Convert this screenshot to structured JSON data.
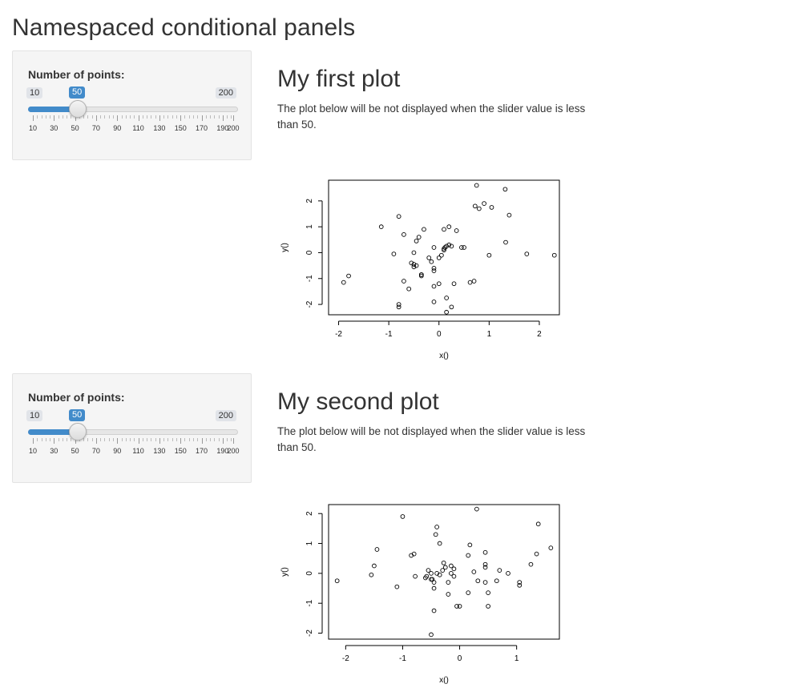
{
  "page": {
    "title": "Namespaced conditional panels"
  },
  "panels": [
    {
      "slider": {
        "label": "Number of points:",
        "min": 10,
        "max": 200,
        "value": 50,
        "min_label": "10",
        "max_label": "200",
        "value_label": "50",
        "tick_labels": [
          "10",
          "30",
          "50",
          "70",
          "90",
          "110",
          "130",
          "150",
          "170",
          "190",
          "200"
        ]
      },
      "plot": {
        "heading": "My first plot",
        "description": "The plot below will be not displayed when the slider value is less than 50."
      }
    },
    {
      "slider": {
        "label": "Number of points:",
        "min": 10,
        "max": 200,
        "value": 50,
        "min_label": "10",
        "max_label": "200",
        "value_label": "50",
        "tick_labels": [
          "10",
          "30",
          "50",
          "70",
          "90",
          "110",
          "130",
          "150",
          "170",
          "190",
          "200"
        ]
      },
      "plot": {
        "heading": "My second plot",
        "description": "The plot below will be not displayed when the slider value is less than 50."
      }
    }
  ],
  "colors": {
    "accent": "#428bca",
    "well_bg": "#f5f5f5",
    "text": "#333333"
  },
  "chart_data": [
    {
      "type": "scatter",
      "title": "",
      "xlabel": "x()",
      "ylabel": "y()",
      "xlim": [
        -2.2,
        2.4
      ],
      "ylim": [
        -2.4,
        2.8
      ],
      "xticks": [
        -2,
        -1,
        0,
        1,
        2
      ],
      "yticks": [
        -2,
        -1,
        0,
        1,
        2
      ],
      "grid": false,
      "x": [
        -1.9,
        -1.8,
        -1.15,
        -0.8,
        -0.9,
        -0.7,
        -0.45,
        -0.4,
        -0.3,
        -0.1,
        0.1,
        0.2,
        0.35,
        0.5,
        0.75,
        0.72,
        0.8,
        0.9,
        1.05,
        1.32,
        1.4,
        1.33,
        1.75,
        2.3,
        -0.8,
        -0.5,
        -0.45,
        -0.5,
        -0.35,
        -0.2,
        -0.15,
        -0.1,
        -0.1,
        0.0,
        0.05,
        0.1,
        0.1,
        0.12,
        0.15,
        0.2,
        0.25,
        -0.55,
        -0.5,
        -0.35,
        -0.35,
        -0.7,
        -0.6,
        -0.1,
        0.3,
        0.62,
        0.7,
        -0.1,
        0.0,
        0.15,
        0.25,
        0.15,
        -0.8,
        1.0,
        0.45
      ],
      "y": [
        -1.15,
        -0.9,
        1.0,
        1.4,
        -0.05,
        0.7,
        0.45,
        0.6,
        0.9,
        0.2,
        0.9,
        1.0,
        0.85,
        0.2,
        2.6,
        1.8,
        1.7,
        1.9,
        1.75,
        2.45,
        1.45,
        0.4,
        -0.05,
        -0.1,
        -2.1,
        0.0,
        -0.5,
        -0.55,
        -0.85,
        -0.2,
        -0.35,
        -0.6,
        -0.7,
        -0.2,
        -0.1,
        0.1,
        0.15,
        0.2,
        0.25,
        0.3,
        0.25,
        -0.4,
        -0.45,
        -0.85,
        -0.9,
        -1.1,
        -1.4,
        -1.3,
        -1.2,
        -1.15,
        -1.1,
        -1.9,
        -1.2,
        -1.75,
        -2.1,
        -2.3,
        -2.0,
        -0.1,
        0.2
      ]
    },
    {
      "type": "scatter",
      "title": "",
      "xlabel": "x()",
      "ylabel": "y()",
      "xlim": [
        -2.3,
        1.75
      ],
      "ylim": [
        -2.2,
        2.3
      ],
      "xticks": [
        -2,
        -1,
        0,
        1
      ],
      "yticks": [
        -2,
        -1,
        0,
        1,
        2
      ],
      "grid": false,
      "x": [
        -2.15,
        -1.55,
        -1.5,
        -1.45,
        -1.1,
        -1.0,
        -0.85,
        -0.8,
        -0.78,
        -0.6,
        -0.58,
        -0.55,
        -0.5,
        -0.48,
        -0.45,
        -0.45,
        -0.42,
        -0.4,
        -0.35,
        -0.3,
        -0.28,
        -0.25,
        -0.2,
        -0.15,
        -0.1,
        -0.05,
        0.15,
        0.15,
        0.18,
        0.25,
        0.3,
        0.32,
        0.45,
        0.45,
        0.45,
        0.45,
        0.5,
        0.5,
        0.7,
        0.65,
        0.85,
        1.05,
        1.05,
        1.25,
        1.35,
        1.38,
        1.6,
        -0.5,
        -0.45,
        -0.5,
        -0.35,
        -0.4,
        -0.1,
        0.0,
        -0.2,
        -0.15
      ],
      "y": [
        -0.25,
        -0.05,
        0.25,
        0.8,
        -0.45,
        1.9,
        0.6,
        0.65,
        -0.1,
        -0.15,
        -0.1,
        0.1,
        0.0,
        -0.2,
        -0.3,
        -0.5,
        1.3,
        1.55,
        1.0,
        0.1,
        0.35,
        0.2,
        -0.7,
        0.0,
        0.15,
        -1.1,
        -0.65,
        0.6,
        0.95,
        0.05,
        2.15,
        -0.25,
        0.3,
        0.2,
        0.7,
        -0.3,
        -0.65,
        -1.1,
        0.1,
        -0.25,
        0.0,
        -0.3,
        -0.4,
        0.3,
        0.65,
        1.65,
        0.85,
        -2.05,
        -1.25,
        -0.2,
        -0.05,
        0.0,
        -0.1,
        -1.1,
        -0.3,
        0.25
      ]
    }
  ]
}
